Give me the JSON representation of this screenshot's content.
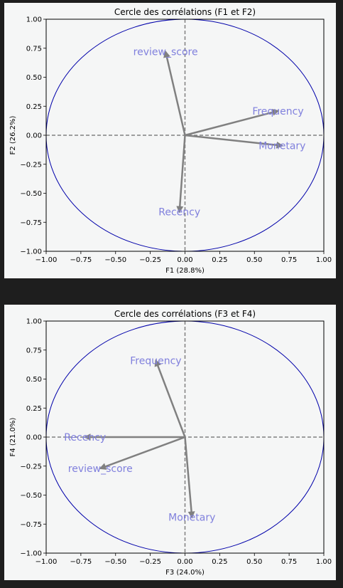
{
  "chart_data": [
    {
      "type": "scatter",
      "subtype": "correlation-circle",
      "title": "Cercle des corrélations (F1 et F2)",
      "xlabel": "F1 (28.8%)",
      "ylabel": "F2 (26.2%)",
      "xlim": [
        -1.0,
        1.0
      ],
      "ylim": [
        -1.0,
        1.0
      ],
      "xticks": [
        "−1.00",
        "−0.75",
        "−0.50",
        "−0.25",
        "0.00",
        "0.25",
        "0.50",
        "0.75",
        "1.00"
      ],
      "yticks": [
        "−1.00",
        "−0.75",
        "−0.50",
        "−0.25",
        "0.00",
        "0.25",
        "0.50",
        "0.75",
        "1.00"
      ],
      "vectors": [
        {
          "name": "review_score",
          "x": -0.14,
          "y": 0.72
        },
        {
          "name": "Frequency",
          "x": 0.67,
          "y": 0.21
        },
        {
          "name": "Monetary",
          "x": 0.7,
          "y": -0.09
        },
        {
          "name": "Recency",
          "x": -0.04,
          "y": -0.66
        }
      ],
      "circle_color": "#0000aa",
      "arrow_color": "#808080",
      "label_color": "#8080dd"
    },
    {
      "type": "scatter",
      "subtype": "correlation-circle",
      "title": "Cercle des corrélations (F3 et F4)",
      "xlabel": "F3 (24.0%)",
      "ylabel": "F4 (21.0%)",
      "xlim": [
        -1.0,
        1.0
      ],
      "ylim": [
        -1.0,
        1.0
      ],
      "xticks": [
        "−1.00",
        "−0.75",
        "−0.50",
        "−0.25",
        "0.00",
        "0.25",
        "0.50",
        "0.75",
        "1.00"
      ],
      "yticks": [
        "−1.00",
        "−0.75",
        "−0.50",
        "−0.25",
        "0.00",
        "0.25",
        "0.50",
        "0.75",
        "1.00"
      ],
      "vectors": [
        {
          "name": "Frequency",
          "x": -0.21,
          "y": 0.66
        },
        {
          "name": "Recency",
          "x": -0.72,
          "y": 0.0
        },
        {
          "name": "review_score",
          "x": -0.61,
          "y": -0.27
        },
        {
          "name": "Monetary",
          "x": 0.05,
          "y": -0.69
        }
      ],
      "circle_color": "#0000aa",
      "arrow_color": "#808080",
      "label_color": "#8080dd"
    }
  ]
}
